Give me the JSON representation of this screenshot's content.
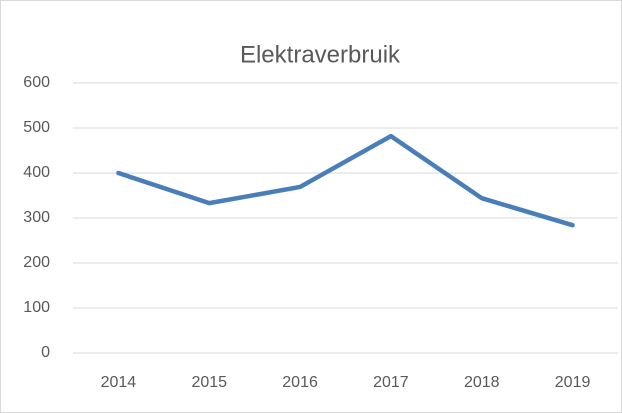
{
  "chart_data": {
    "type": "line",
    "title": "Elektraverbruik",
    "categories": [
      "2014",
      "2015",
      "2016",
      "2017",
      "2018",
      "2019"
    ],
    "values": [
      400,
      333,
      369,
      482,
      344,
      284
    ],
    "color": "#4a7ebb",
    "ylim": [
      0,
      600
    ],
    "yticks": [
      0,
      100,
      200,
      300,
      400,
      500,
      600
    ],
    "grid": true
  }
}
